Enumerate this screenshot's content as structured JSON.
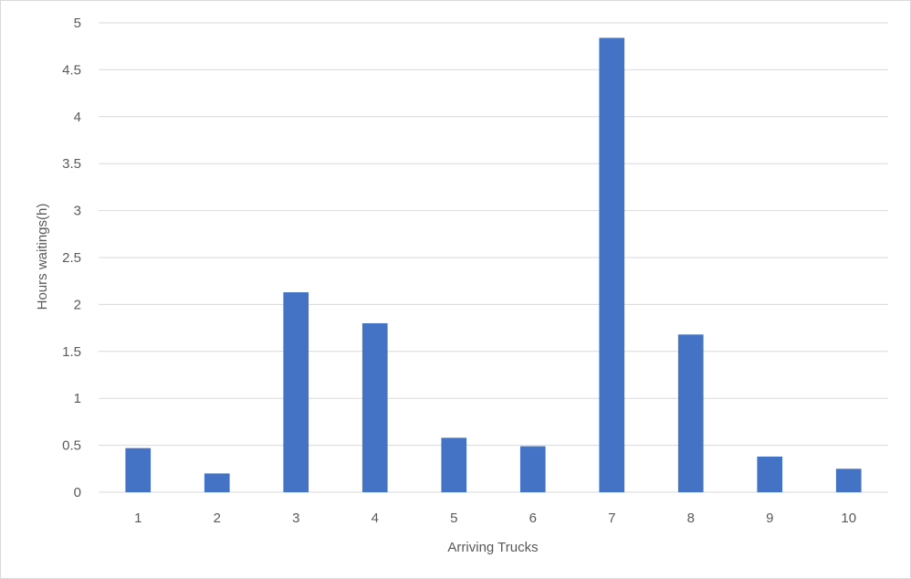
{
  "chart_data": {
    "type": "bar",
    "title": "",
    "xlabel": "Arriving Trucks",
    "ylabel": "Hours waitings(h)",
    "categories": [
      "1",
      "2",
      "3",
      "4",
      "5",
      "6",
      "7",
      "8",
      "9",
      "10"
    ],
    "values": [
      0.47,
      0.2,
      2.13,
      1.8,
      0.58,
      0.49,
      4.84,
      1.68,
      0.38,
      0.25
    ],
    "ylim": [
      0,
      5
    ],
    "yticks": [
      "0",
      "0.5",
      "1",
      "1.5",
      "2",
      "2.5",
      "3",
      "3.5",
      "4",
      "4.5",
      "5"
    ],
    "grid": true,
    "legend": "none",
    "bar_color": "#4472c4",
    "grid_color": "#d9d9d9"
  }
}
